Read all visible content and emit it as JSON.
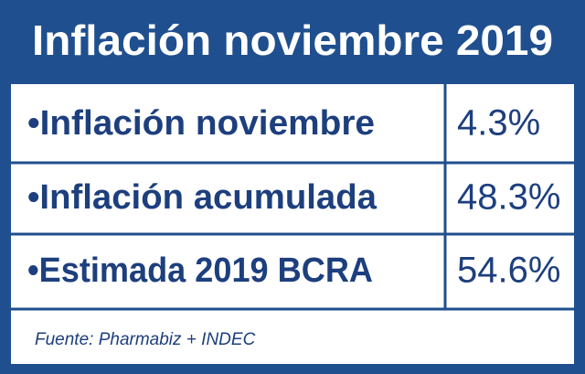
{
  "header": {
    "title": "Inflación noviembre 2019"
  },
  "table": {
    "rows": [
      [
        "•Inflación noviembre",
        "4.3%"
      ],
      [
        "•Inflación acumulada",
        "48.3%"
      ],
      [
        "•Estimada 2019 BCRA",
        "54.6%"
      ]
    ]
  },
  "source": "Fuente: Pharmabiz + INDEC"
}
